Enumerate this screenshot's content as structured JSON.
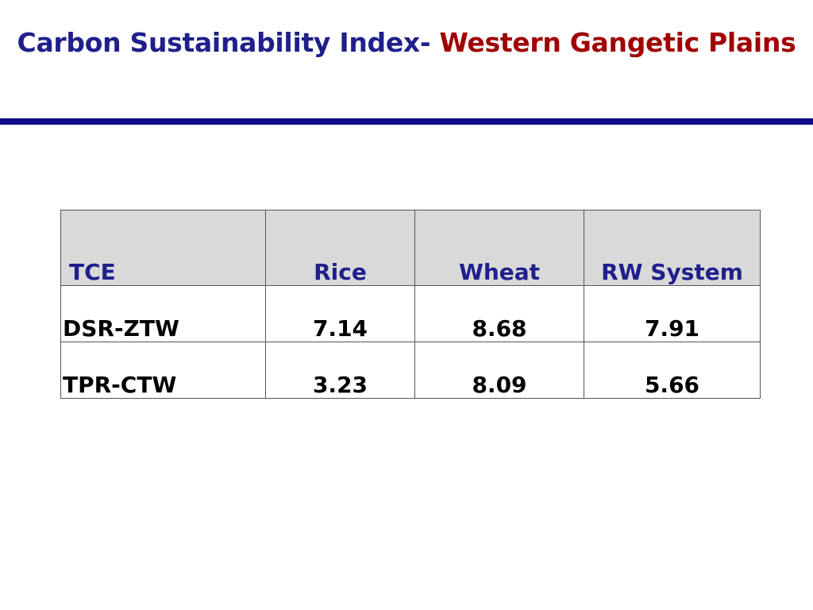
{
  "slide": {
    "title_part_1": "Carbon Sustainability Index- ",
    "title_part_2": "Western Gangetic Plains"
  },
  "table": {
    "headers": [
      "TCE",
      "Rice",
      "Wheat",
      "RW System"
    ],
    "rows": [
      [
        "DSR-ZTW",
        "7.14",
        "8.68",
        "7.91"
      ],
      [
        "TPR-CTW",
        "3.23",
        "8.09",
        "5.66"
      ]
    ]
  },
  "colors": {
    "title_blue": "#1f1f8c",
    "title_red": "#a00000",
    "divider": "#0c0c87",
    "header_fill": "#d9d9d9"
  }
}
